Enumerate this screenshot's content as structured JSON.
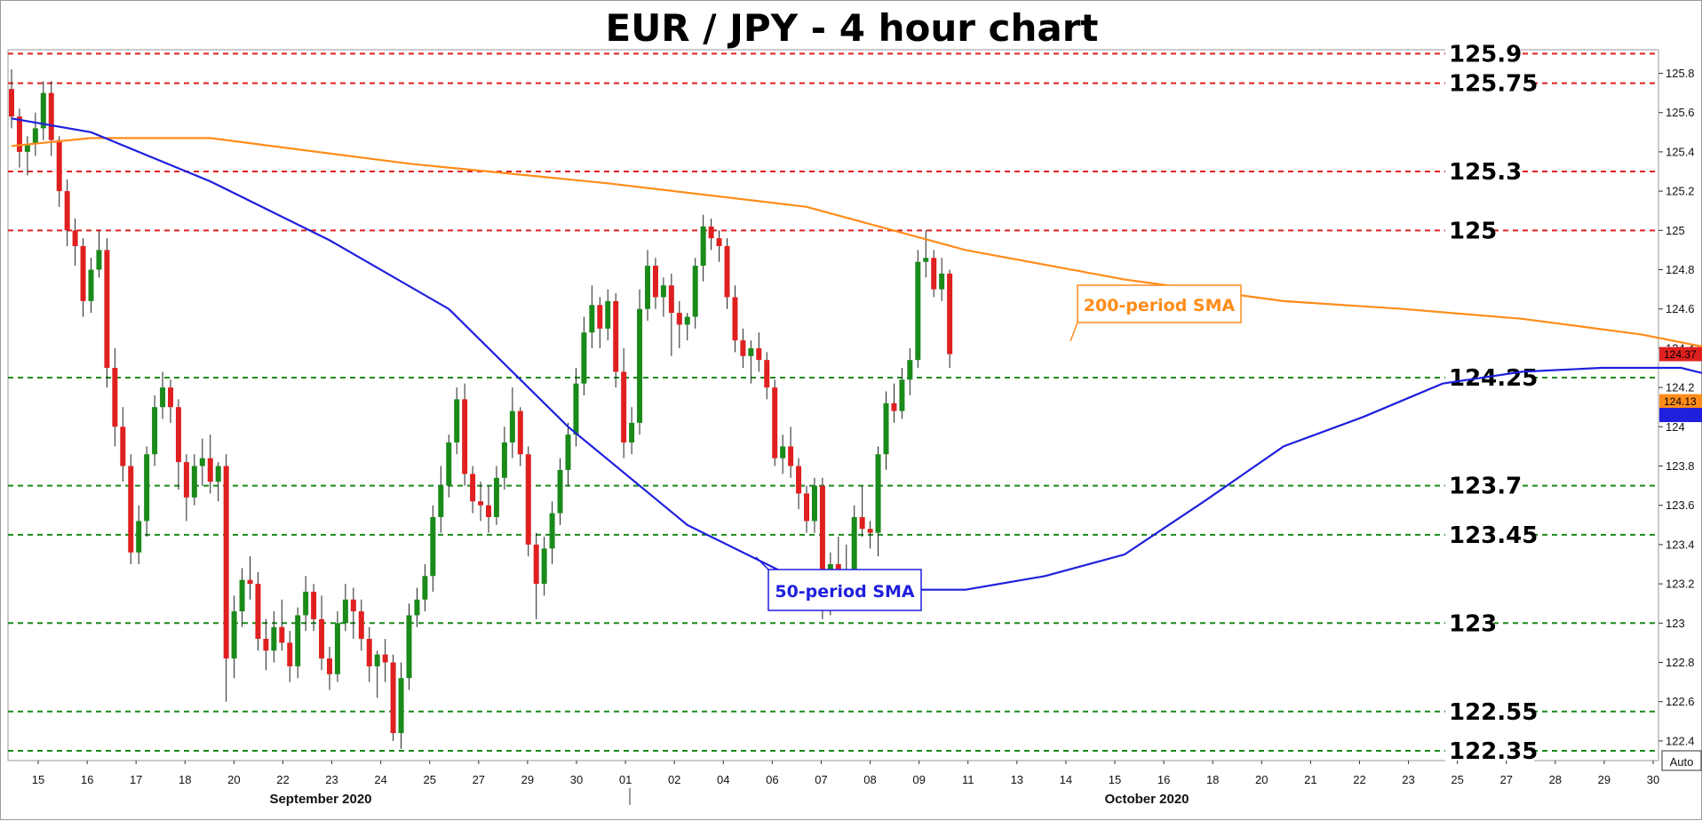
{
  "chart_data": {
    "type": "candlestick",
    "title": "EUR / JPY - 4 hour chart",
    "ylim": [
      122.3,
      125.92
    ],
    "y_ticks": [
      122.4,
      122.6,
      122.8,
      123,
      123.2,
      123.4,
      123.6,
      123.8,
      124,
      124.2,
      124.4,
      124.6,
      124.8,
      125,
      125.2,
      125.4,
      125.6,
      125.8
    ],
    "x_ticks": [
      "15",
      "16",
      "17",
      "18",
      "20",
      "22",
      "23",
      "24",
      "25",
      "27",
      "29",
      "30",
      "01",
      "02",
      "04",
      "06",
      "07",
      "08",
      "09",
      "11",
      "13",
      "14",
      "15",
      "16",
      "18",
      "20",
      "21",
      "22",
      "23",
      "25",
      "27",
      "28",
      "29",
      "30"
    ],
    "months": [
      "September 2020",
      "October 2020"
    ],
    "levels": [
      {
        "label": "125.9",
        "value": 125.9,
        "color": "#e02020"
      },
      {
        "label": "125.75",
        "value": 125.75,
        "color": "#e02020"
      },
      {
        "label": "125.3",
        "value": 125.3,
        "color": "#e02020"
      },
      {
        "label": "125",
        "value": 125.0,
        "color": "#e02020"
      },
      {
        "label": "124.25",
        "value": 124.25,
        "color": "#1a8a1a"
      },
      {
        "label": "123.7",
        "value": 123.7,
        "color": "#1a8a1a"
      },
      {
        "label": "123.45",
        "value": 123.45,
        "color": "#1a8a1a"
      },
      {
        "label": "123",
        "value": 123.0,
        "color": "#1a8a1a"
      },
      {
        "label": "122.55",
        "value": 122.55,
        "color": "#1a8a1a"
      },
      {
        "label": "122.35",
        "value": 122.35,
        "color": "#1a8a1a"
      }
    ],
    "series": [
      {
        "name": "200-period SMA",
        "color": "#ff8c1a"
      },
      {
        "name": "50-period SMA",
        "color": "#1f1fdd"
      }
    ],
    "sma200_points": [
      [
        0,
        125.43
      ],
      [
        10,
        125.47
      ],
      [
        25,
        125.47
      ],
      [
        50,
        125.34
      ],
      [
        75,
        125.24
      ],
      [
        100,
        125.12
      ],
      [
        120,
        124.9
      ],
      [
        140,
        124.75
      ],
      [
        160,
        124.64
      ],
      [
        175,
        124.6
      ],
      [
        190,
        124.55
      ],
      [
        205,
        124.47
      ],
      [
        220,
        124.35
      ],
      [
        235,
        124.25
      ],
      [
        250,
        124.16
      ],
      [
        265,
        124.11
      ]
    ],
    "sma50_points": [
      [
        0,
        125.57
      ],
      [
        10,
        125.5
      ],
      [
        25,
        125.25
      ],
      [
        40,
        124.95
      ],
      [
        55,
        124.6
      ],
      [
        70,
        124.0
      ],
      [
        85,
        123.5
      ],
      [
        100,
        123.2
      ],
      [
        110,
        123.17
      ],
      [
        120,
        123.17
      ],
      [
        130,
        123.24
      ],
      [
        140,
        123.35
      ],
      [
        150,
        123.62
      ],
      [
        160,
        123.9
      ],
      [
        170,
        124.05
      ],
      [
        180,
        124.22
      ],
      [
        190,
        124.28
      ],
      [
        200,
        124.3
      ],
      [
        210,
        124.3
      ],
      [
        220,
        124.2
      ],
      [
        230,
        124.05
      ],
      [
        240,
        124.04
      ],
      [
        250,
        124.05
      ]
    ],
    "current_price": "124.37",
    "sma200_value": "124.13",
    "sma50_value": "124.06",
    "candles": [
      [
        125.72,
        125.82,
        125.52,
        125.58
      ],
      [
        125.58,
        125.62,
        125.32,
        125.4
      ],
      [
        125.4,
        125.48,
        125.28,
        125.44
      ],
      [
        125.44,
        125.6,
        125.38,
        125.52
      ],
      [
        125.52,
        125.76,
        125.46,
        125.7
      ],
      [
        125.7,
        125.76,
        125.38,
        125.46
      ],
      [
        125.46,
        125.48,
        125.12,
        125.2
      ],
      [
        125.2,
        125.26,
        124.92,
        125.0
      ],
      [
        125.0,
        125.06,
        124.82,
        124.92
      ],
      [
        124.92,
        124.96,
        124.56,
        124.64
      ],
      [
        124.64,
        124.86,
        124.58,
        124.8
      ],
      [
        124.8,
        125.0,
        124.76,
        124.9
      ],
      [
        124.9,
        124.96,
        124.2,
        124.3
      ],
      [
        124.3,
        124.4,
        123.9,
        124.0
      ],
      [
        124.0,
        124.1,
        123.72,
        123.8
      ],
      [
        123.8,
        123.86,
        123.3,
        123.36
      ],
      [
        123.36,
        123.6,
        123.3,
        123.52
      ],
      [
        123.52,
        123.9,
        123.44,
        123.86
      ],
      [
        123.86,
        124.16,
        123.8,
        124.1
      ],
      [
        124.1,
        124.28,
        124.04,
        124.2
      ],
      [
        124.2,
        124.24,
        124.02,
        124.1
      ],
      [
        124.1,
        124.14,
        123.68,
        123.82
      ],
      [
        123.82,
        123.86,
        123.52,
        123.64
      ],
      [
        123.64,
        123.86,
        123.6,
        123.8
      ],
      [
        123.8,
        123.94,
        123.7,
        123.84
      ],
      [
        123.84,
        123.96,
        123.66,
        123.72
      ],
      [
        123.72,
        123.82,
        123.62,
        123.8
      ],
      [
        123.8,
        123.86,
        122.6,
        122.82
      ],
      [
        122.82,
        123.14,
        122.72,
        123.06
      ],
      [
        123.06,
        123.28,
        122.98,
        123.22
      ],
      [
        123.22,
        123.34,
        123.12,
        123.2
      ],
      [
        123.2,
        123.26,
        122.86,
        122.92
      ],
      [
        122.92,
        123.02,
        122.76,
        122.86
      ],
      [
        122.86,
        123.06,
        122.8,
        122.98
      ],
      [
        122.98,
        123.12,
        122.86,
        122.9
      ],
      [
        122.9,
        122.96,
        122.7,
        122.78
      ],
      [
        122.78,
        123.08,
        122.72,
        123.04
      ],
      [
        123.04,
        123.24,
        122.96,
        123.16
      ],
      [
        123.16,
        123.2,
        122.96,
        123.02
      ],
      [
        123.02,
        123.14,
        122.76,
        122.82
      ],
      [
        122.82,
        122.88,
        122.66,
        122.74
      ],
      [
        122.74,
        123.06,
        122.7,
        123.0
      ],
      [
        123.0,
        123.2,
        122.96,
        123.12
      ],
      [
        123.12,
        123.18,
        122.92,
        123.06
      ],
      [
        123.06,
        123.12,
        122.86,
        122.92
      ],
      [
        122.92,
        122.98,
        122.7,
        122.78
      ],
      [
        122.78,
        122.86,
        122.62,
        122.84
      ],
      [
        122.84,
        122.92,
        122.7,
        122.8
      ],
      [
        122.8,
        122.84,
        122.4,
        122.44
      ],
      [
        122.44,
        122.8,
        122.36,
        122.72
      ],
      [
        122.72,
        123.1,
        122.66,
        123.04
      ],
      [
        123.04,
        123.18,
        122.98,
        123.12
      ],
      [
        123.12,
        123.3,
        123.06,
        123.24
      ],
      [
        123.24,
        123.6,
        123.16,
        123.54
      ],
      [
        123.54,
        123.8,
        123.46,
        123.7
      ],
      [
        123.7,
        123.96,
        123.64,
        123.92
      ],
      [
        123.92,
        124.2,
        123.86,
        124.14
      ],
      [
        124.14,
        124.22,
        123.7,
        123.76
      ],
      [
        123.76,
        123.8,
        123.56,
        123.62
      ],
      [
        123.62,
        123.72,
        123.52,
        123.6
      ],
      [
        123.6,
        123.7,
        123.46,
        123.54
      ],
      [
        123.54,
        123.8,
        123.5,
        123.74
      ],
      [
        123.74,
        124.0,
        123.68,
        123.92
      ],
      [
        123.92,
        124.2,
        123.84,
        124.08
      ],
      [
        124.08,
        124.1,
        123.8,
        123.86
      ],
      [
        123.86,
        123.9,
        123.34,
        123.4
      ],
      [
        123.4,
        123.46,
        123.02,
        123.2
      ],
      [
        123.2,
        123.44,
        123.14,
        123.38
      ],
      [
        123.38,
        123.62,
        123.3,
        123.56
      ],
      [
        123.56,
        123.84,
        123.5,
        123.78
      ],
      [
        123.78,
        124.02,
        123.7,
        123.96
      ],
      [
        123.96,
        124.3,
        123.9,
        124.22
      ],
      [
        124.22,
        124.56,
        124.16,
        124.48
      ],
      [
        124.48,
        124.72,
        124.4,
        124.62
      ],
      [
        124.62,
        124.66,
        124.4,
        124.5
      ],
      [
        124.5,
        124.7,
        124.44,
        124.64
      ],
      [
        124.64,
        124.68,
        124.2,
        124.28
      ],
      [
        124.28,
        124.4,
        123.84,
        123.92
      ],
      [
        123.92,
        124.1,
        123.86,
        124.02
      ],
      [
        124.02,
        124.7,
        123.96,
        124.6
      ],
      [
        124.6,
        124.9,
        124.54,
        124.82
      ],
      [
        124.82,
        124.86,
        124.6,
        124.66
      ],
      [
        124.66,
        124.76,
        124.56,
        124.72
      ],
      [
        124.72,
        124.78,
        124.36,
        124.58
      ],
      [
        124.58,
        124.64,
        124.4,
        124.52
      ],
      [
        124.52,
        124.58,
        124.44,
        124.56
      ],
      [
        124.56,
        124.86,
        124.5,
        124.82
      ],
      [
        124.82,
        125.08,
        124.74,
        125.02
      ],
      [
        125.02,
        125.06,
        124.9,
        124.96
      ],
      [
        124.96,
        125.0,
        124.84,
        124.92
      ],
      [
        124.92,
        124.96,
        124.6,
        124.66
      ],
      [
        124.66,
        124.72,
        124.38,
        124.44
      ],
      [
        124.44,
        124.5,
        124.3,
        124.36
      ],
      [
        124.36,
        124.44,
        124.22,
        124.4
      ],
      [
        124.4,
        124.48,
        124.28,
        124.34
      ],
      [
        124.34,
        124.38,
        124.14,
        124.2
      ],
      [
        124.2,
        124.24,
        123.8,
        123.84
      ],
      [
        123.84,
        123.96,
        123.76,
        123.9
      ],
      [
        123.9,
        124.0,
        123.74,
        123.8
      ],
      [
        123.8,
        123.84,
        123.58,
        123.66
      ],
      [
        123.66,
        123.7,
        123.46,
        123.52
      ],
      [
        123.52,
        123.74,
        123.46,
        123.7
      ],
      [
        123.7,
        123.74,
        123.02,
        123.1
      ],
      [
        123.1,
        123.36,
        123.04,
        123.3
      ],
      [
        123.3,
        123.44,
        123.16,
        123.24
      ],
      [
        123.24,
        123.4,
        123.08,
        123.14
      ],
      [
        123.14,
        123.6,
        123.1,
        123.54
      ],
      [
        123.54,
        123.7,
        123.44,
        123.48
      ],
      [
        123.48,
        123.52,
        123.38,
        123.46
      ],
      [
        123.46,
        123.9,
        123.34,
        123.86
      ],
      [
        123.86,
        124.18,
        123.78,
        124.12
      ],
      [
        124.12,
        124.22,
        124.02,
        124.08
      ],
      [
        124.08,
        124.3,
        124.04,
        124.24
      ],
      [
        124.24,
        124.4,
        124.16,
        124.34
      ],
      [
        124.34,
        124.9,
        124.3,
        124.84
      ],
      [
        124.84,
        125.0,
        124.76,
        124.86
      ],
      [
        124.86,
        124.9,
        124.66,
        124.7
      ],
      [
        124.7,
        124.86,
        124.64,
        124.78
      ],
      [
        124.78,
        124.8,
        124.3,
        124.37
      ]
    ]
  }
}
